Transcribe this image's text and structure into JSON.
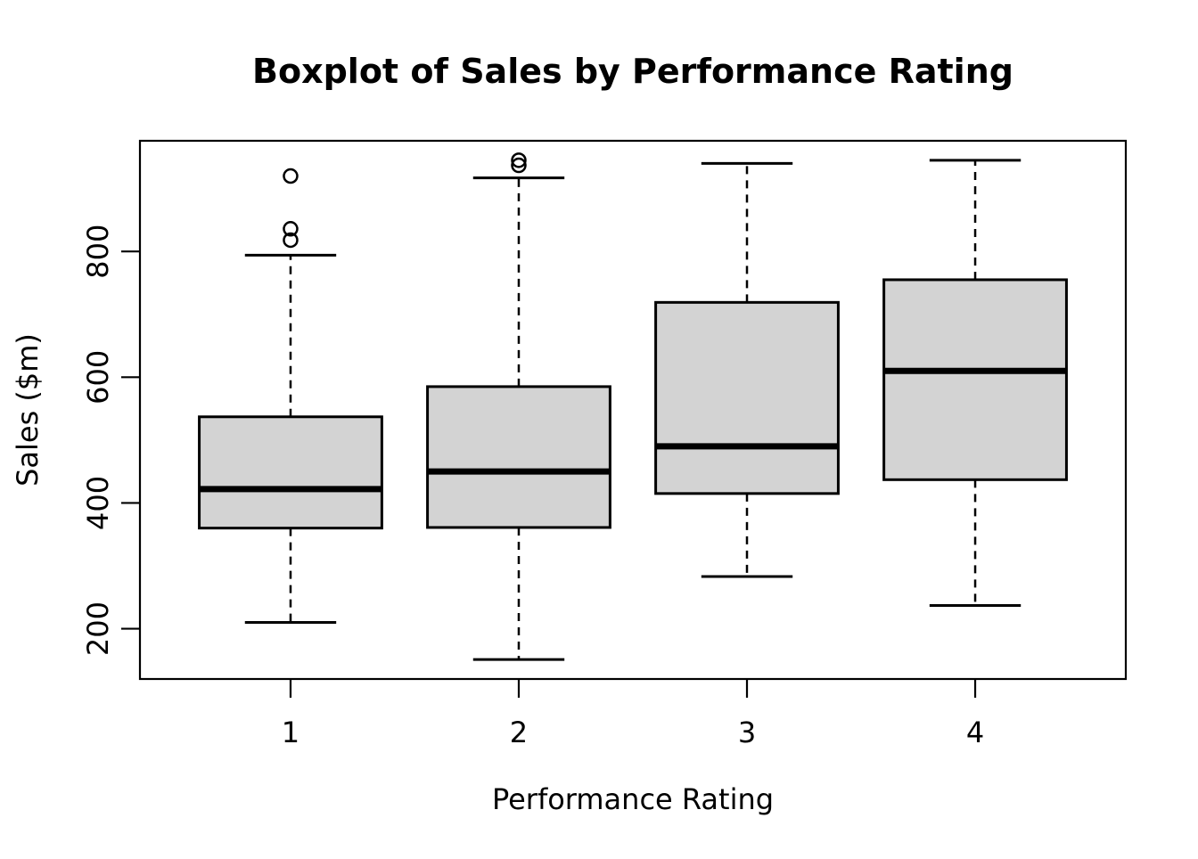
{
  "chart_data": {
    "type": "boxplot",
    "title": "Boxplot of Sales by Performance Rating",
    "xlabel": "Performance Rating",
    "ylabel": "Sales ($m)",
    "categories": [
      "1",
      "2",
      "3",
      "4"
    ],
    "y_ticks": [
      200,
      400,
      600,
      800
    ],
    "x_range": [
      0.34,
      4.66
    ],
    "y_range": [
      120,
      976
    ],
    "box_width": 0.8,
    "cap_width": 0.4,
    "grid": "off",
    "legend": "none",
    "colors": {
      "box_fill": "#d3d3d3",
      "line": "#000000",
      "background": "#ffffff"
    },
    "series": [
      {
        "category": "1",
        "lower_whisker": 210,
        "q1": 360,
        "median": 422,
        "q3": 537,
        "upper_whisker": 794,
        "outliers": [
          818,
          836,
          920
        ]
      },
      {
        "category": "2",
        "lower_whisker": 151,
        "q1": 361,
        "median": 450,
        "q3": 585,
        "upper_whisker": 917,
        "outliers": [
          937,
          945
        ]
      },
      {
        "category": "3",
        "lower_whisker": 283,
        "q1": 415,
        "median": 490,
        "q3": 719,
        "upper_whisker": 940,
        "outliers": []
      },
      {
        "category": "4",
        "lower_whisker": 237,
        "q1": 437,
        "median": 610,
        "q3": 755,
        "upper_whisker": 945,
        "outliers": []
      }
    ]
  }
}
